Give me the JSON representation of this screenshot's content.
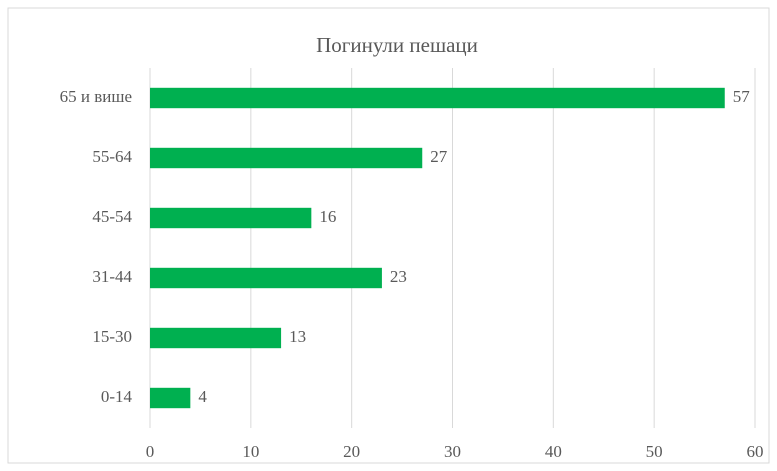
{
  "chart_data": {
    "type": "bar",
    "orientation": "horizontal",
    "title": "Погинули пешаци",
    "categories": [
      "65 и више",
      "55-64",
      "45-54",
      "31-44",
      "15-30",
      "0-14"
    ],
    "values": [
      57,
      27,
      16,
      23,
      13,
      4
    ],
    "color": "#00b050",
    "xlim": [
      0,
      60
    ],
    "xticks": [
      0,
      10,
      20,
      30,
      40,
      50,
      60
    ],
    "grid": true,
    "data_labels": true
  }
}
